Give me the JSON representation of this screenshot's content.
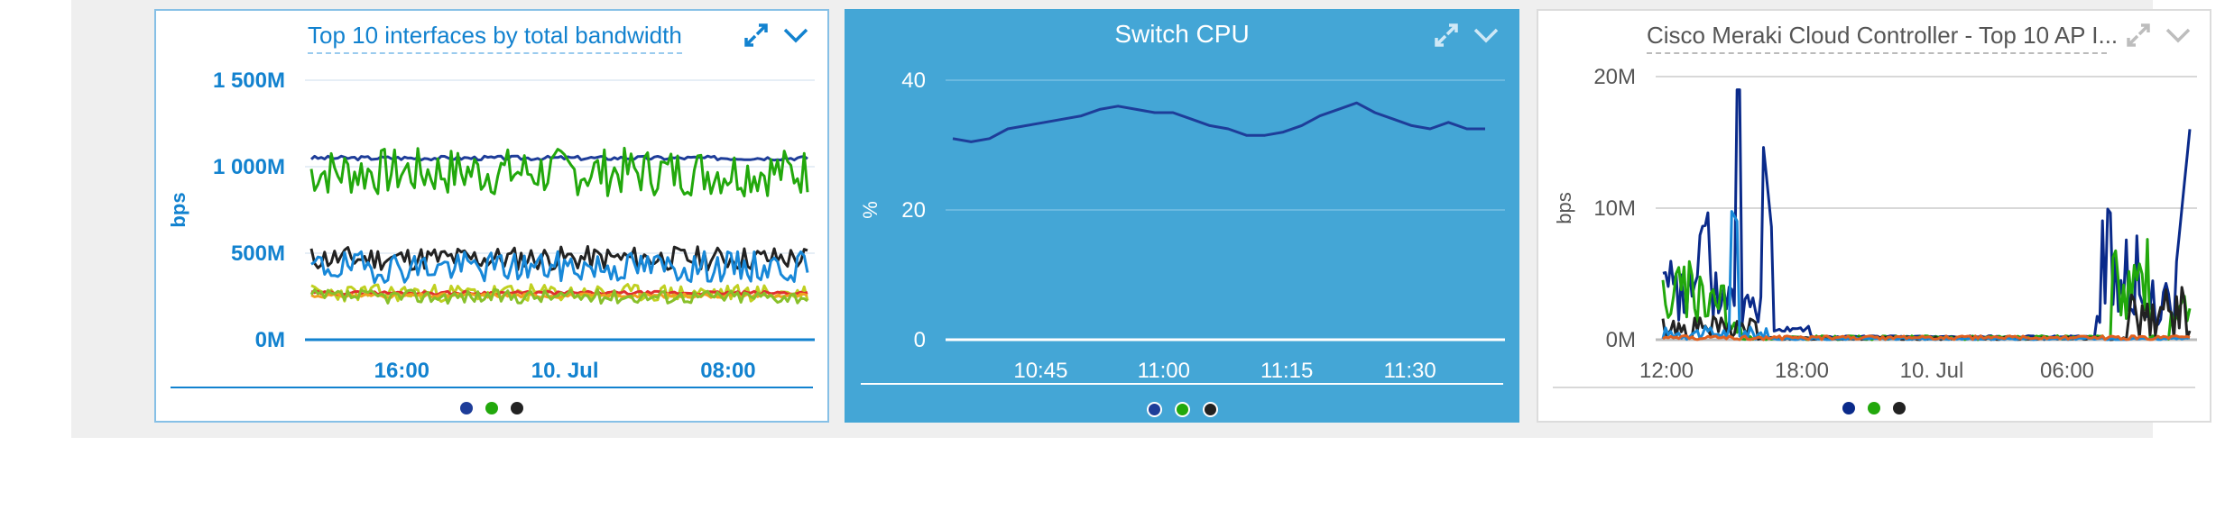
{
  "widgets": [
    {
      "title": "Top 10 interfaces by total bandwidth",
      "colors": {
        "accent": "#1282cf",
        "axis": "#1282cf"
      },
      "chart_data": {
        "type": "line",
        "title": "Top 10 interfaces by total bandwidth",
        "xlabel": "",
        "ylabel": "bps",
        "y_ticks": [
          "0M",
          "500M",
          "1 000M",
          "1 500M"
        ],
        "x_ticks": [
          "16:00",
          "10. Jul",
          "08:00"
        ],
        "ylim": [
          0,
          1500
        ],
        "x_tick_positions": [
          0.19,
          0.51,
          0.83
        ],
        "series": [
          {
            "color": "#1e3d99",
            "style": "flat",
            "mean": 1050,
            "amp": 12,
            "seed": 3
          },
          {
            "color": "#22a80c",
            "style": "noisy",
            "mean": 970,
            "amp": 140,
            "seed": 7
          },
          {
            "color": "#222222",
            "style": "noisy",
            "mean": 470,
            "amp": 70,
            "seed": 11
          },
          {
            "color": "#1888d8",
            "style": "noisy",
            "mean": 420,
            "amp": 90,
            "seed": 19
          },
          {
            "color": "#c0d020",
            "style": "noisy",
            "mean": 270,
            "amp": 50,
            "seed": 23
          },
          {
            "color": "#e03030",
            "style": "flat",
            "mean": 270,
            "amp": 10,
            "seed": 29
          },
          {
            "color": "#f0a020",
            "style": "flat",
            "mean": 255,
            "amp": 12,
            "seed": 31
          },
          {
            "color": "#88c02a",
            "style": "noisy",
            "mean": 250,
            "amp": 40,
            "seed": 37
          }
        ]
      },
      "legend_dots": [
        "#1e3d99",
        "#22a80c",
        "#222222"
      ]
    },
    {
      "title": "Switch CPU",
      "colors": {
        "accent": "#44a6d6"
      },
      "chart_data": {
        "type": "line",
        "title": "Switch CPU",
        "xlabel": "",
        "ylabel": "%",
        "y_ticks": [
          "0",
          "20",
          "40"
        ],
        "x_ticks": [
          "10:45",
          "11:00",
          "11:15",
          "11:30"
        ],
        "ylim": [
          0,
          40
        ],
        "x_tick_positions": [
          0.17,
          0.39,
          0.61,
          0.83
        ],
        "series": [
          {
            "color": "#1e3d99",
            "values": [
              31,
              30.5,
              31,
              32.5,
              33,
              33.5,
              34,
              34.5,
              35.5,
              36,
              35.5,
              35,
              35,
              34,
              33,
              32.5,
              31.5,
              31.5,
              32,
              33,
              34.5,
              35.5,
              36.5,
              35,
              34,
              33,
              32.5,
              33.5,
              32.5,
              32.5
            ]
          }
        ]
      },
      "legend_dots": [
        "#1e3d99",
        "#22a80c",
        "#222222"
      ]
    },
    {
      "title": "Cisco Meraki Cloud Controller - Top 10 AP I...",
      "colors": {
        "accent": "#555555"
      },
      "chart_data": {
        "type": "line",
        "title": "Cisco Meraki Cloud Controller - Top 10 AP I...",
        "xlabel": "",
        "ylabel": "bps",
        "y_ticks": [
          "0M",
          "10M",
          "20M"
        ],
        "x_ticks": [
          "12:00",
          "18:00",
          "10. Jul",
          "06:00"
        ],
        "ylim": [
          0,
          20
        ],
        "x_tick_positions": [
          0.02,
          0.27,
          0.51,
          0.76
        ],
        "series": [
          {
            "color": "#0a2a8a",
            "style": "meraki-main",
            "seed": 5
          },
          {
            "color": "#22a80c",
            "style": "meraki-green",
            "seed": 9
          },
          {
            "color": "#222222",
            "style": "meraki-black",
            "seed": 13
          },
          {
            "color": "#1888d8",
            "style": "meraki-blue",
            "seed": 17
          },
          {
            "color": "#e06020",
            "style": "meraki-low",
            "seed": 21
          }
        ]
      },
      "legend_dots": [
        "#0a2a8a",
        "#22a80c",
        "#222222"
      ]
    }
  ],
  "icons": {
    "expand": "expand-icon",
    "collapse": "chevron-down-icon"
  }
}
